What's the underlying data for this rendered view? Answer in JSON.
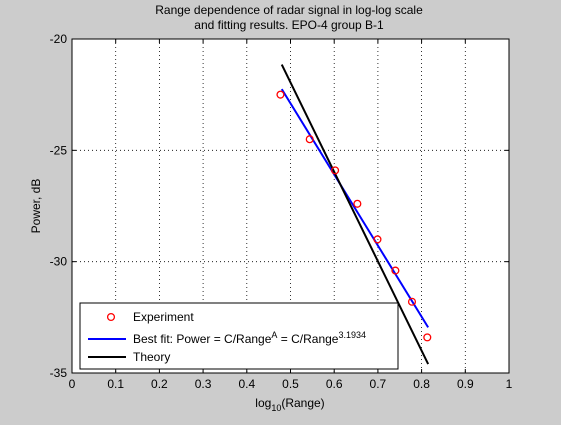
{
  "chart_data": {
    "type": "line",
    "title": [
      "Range dependence of radar signal in log-log scale",
      "and fitting results. EPO-4 group B-1"
    ],
    "xlabel": {
      "prefix": "log",
      "sub": "10",
      "suffix": "(Range)"
    },
    "ylabel": "Power, dB",
    "xlim": [
      0,
      1
    ],
    "ylim": [
      -35,
      -20
    ],
    "xticks": [
      0,
      0.1,
      0.2,
      0.3,
      0.4,
      0.5,
      0.6,
      0.7,
      0.8,
      0.9,
      1
    ],
    "xtick_labels": [
      "0",
      "0.1",
      "0.2",
      "0.3",
      "0.4",
      "0.5",
      "0.6",
      "0.7",
      "0.8",
      "0.9",
      "1"
    ],
    "yticks": [
      -35,
      -30,
      -25,
      -20
    ],
    "ytick_labels": [
      "-35",
      "-30",
      "-25",
      "-20"
    ],
    "grid": true,
    "legend_position": "bottom-left",
    "series": [
      {
        "name": "Experiment",
        "kind": "scatter",
        "marker": "circle",
        "color": "#ff0000",
        "x": [
          0.477,
          0.544,
          0.602,
          0.653,
          0.699,
          0.74,
          0.778,
          0.813
        ],
        "y": [
          -22.5,
          -24.5,
          -25.9,
          -27.4,
          -29.0,
          -30.4,
          -31.8,
          -33.4
        ]
      },
      {
        "name": "Best fit",
        "legend_text": {
          "a": "Best fit: Power = C/Range",
          "a_sup": "A",
          "b": " = C/Range",
          "b_sup": "3.1934"
        },
        "kind": "line",
        "color": "#0000ff",
        "x": [
          0.48,
          0.815
        ],
        "y": [
          -22.25,
          -32.95
        ]
      },
      {
        "name": "Theory",
        "kind": "line",
        "color": "#000000",
        "x": [
          0.48,
          0.815
        ],
        "y": [
          -21.15,
          -34.6
        ]
      }
    ]
  }
}
